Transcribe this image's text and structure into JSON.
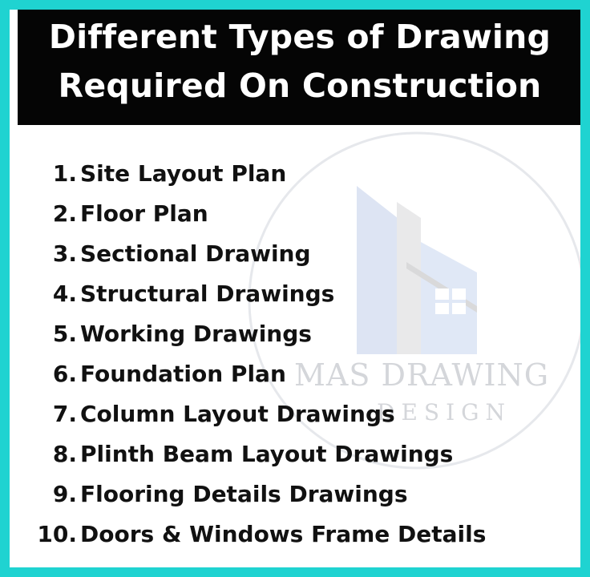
{
  "title": {
    "line1": "Different Types of Drawing",
    "line2": "Required On Construction"
  },
  "watermark": {
    "line1": "MAS DRAWING",
    "line2": "DESIGN",
    "icon": "house-logo-icon"
  },
  "items": [
    {
      "num": "1.",
      "label": "Site Layout Plan"
    },
    {
      "num": "2.",
      "label": "Floor Plan"
    },
    {
      "num": "3.",
      "label": "Sectional Drawing"
    },
    {
      "num": "4.",
      "label": "Structural Drawings"
    },
    {
      "num": "5.",
      "label": "Working Drawings"
    },
    {
      "num": "6.",
      "label": "Foundation Plan"
    },
    {
      "num": "7.",
      "label": "Column Layout Drawings"
    },
    {
      "num": "8.",
      "label": "Plinth Beam Layout Drawings"
    },
    {
      "num": "9.",
      "label": "Flooring Details Drawings"
    },
    {
      "num": "10.",
      "label": "Doors & Windows Frame Details"
    }
  ],
  "colors": {
    "border": "#1fd3d1",
    "title_background": "#050505",
    "title_text": "#ffffff",
    "body_text": "#111111"
  }
}
